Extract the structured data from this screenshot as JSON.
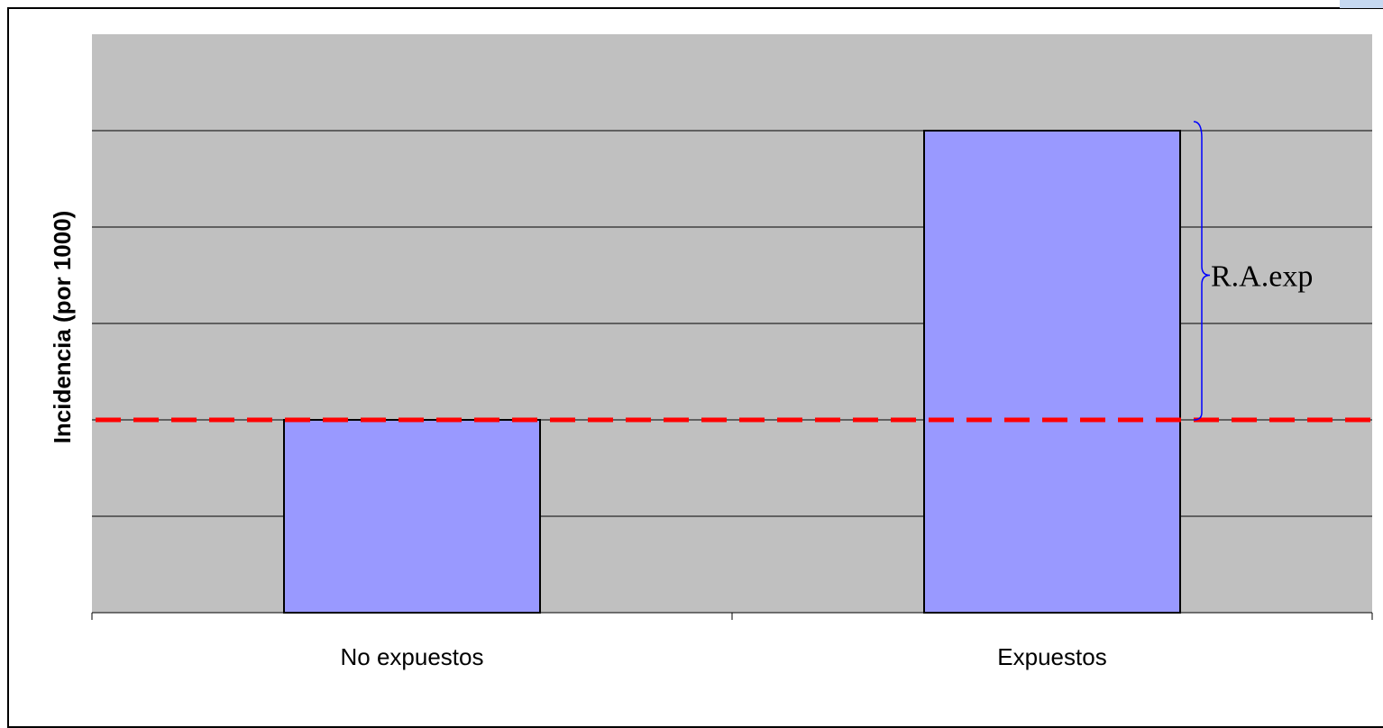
{
  "chart_data": {
    "type": "bar",
    "categories": [
      "No expuestos",
      "Expuestos"
    ],
    "values": [
      2.0,
      5.0
    ],
    "ylabel": "Incidencia (por 1000)",
    "xlabel": "",
    "ylim": [
      0,
      6
    ],
    "grid": true,
    "reference_line": {
      "value": 2.0,
      "style": "dashed",
      "color": "#ff0000"
    },
    "annotation": {
      "text": "R.A.exp",
      "from": 2.0,
      "to": 5.0
    },
    "colors": {
      "plot_background": "#c0c0c0",
      "bar_fill": "#9999ff",
      "bar_stroke": "#000000",
      "gridline": "#000000",
      "annotation_brace": "#0000ff"
    }
  }
}
